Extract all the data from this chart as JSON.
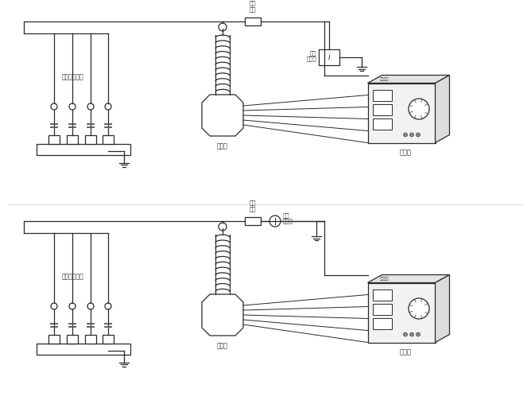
{
  "bg_color": "#ffffff",
  "line_color": "#2a2a2a",
  "panel1": {
    "label_protector": "过电压保护器",
    "label_resistor": "限流\n电阻",
    "label_transformer": "升压器",
    "label_voltmeter": "交流\n毫安表",
    "label_regulator": "调压器"
  },
  "panel2": {
    "label_protector": "过电压保护器",
    "label_resistor": "限流\n电阻",
    "label_transformer": "升压器",
    "label_voltmeter": "交流\n毫安表",
    "label_regulator": "调压器"
  }
}
